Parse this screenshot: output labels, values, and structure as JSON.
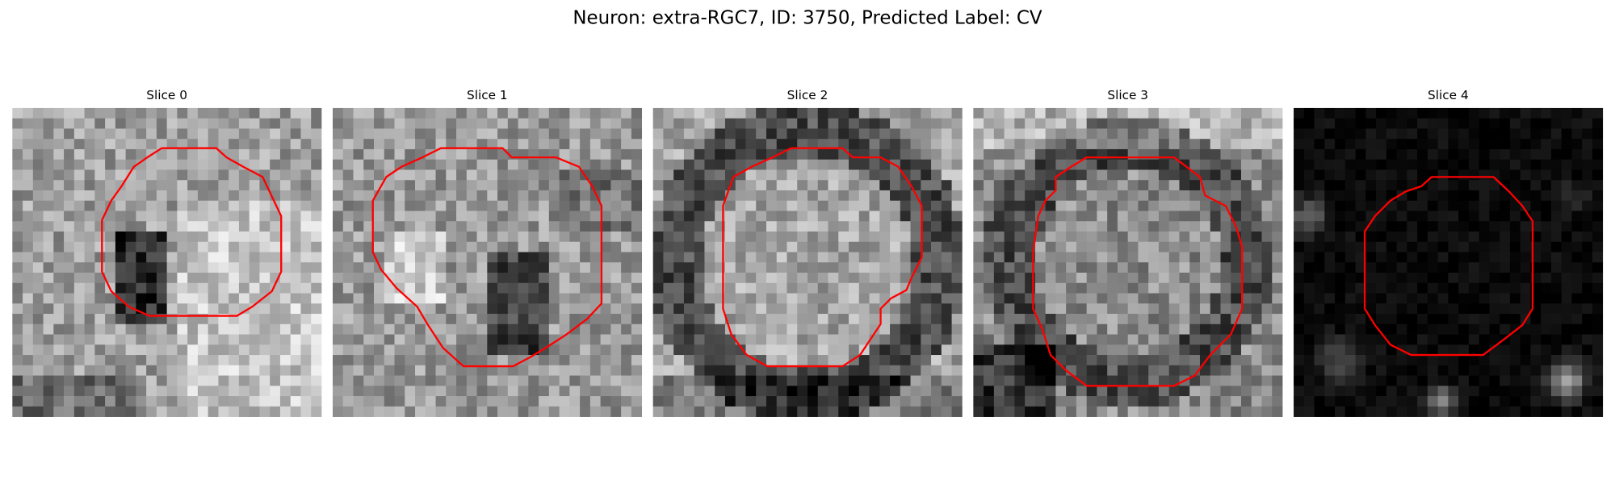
{
  "title": "Neuron: extra-RGC7, ID: 3750, Predicted Label: CV",
  "panels": [
    {
      "title": "Slice 0"
    },
    {
      "title": "Slice 1"
    },
    {
      "title": "Slice 2"
    },
    {
      "title": "Slice 3"
    },
    {
      "title": "Slice 4"
    }
  ]
}
